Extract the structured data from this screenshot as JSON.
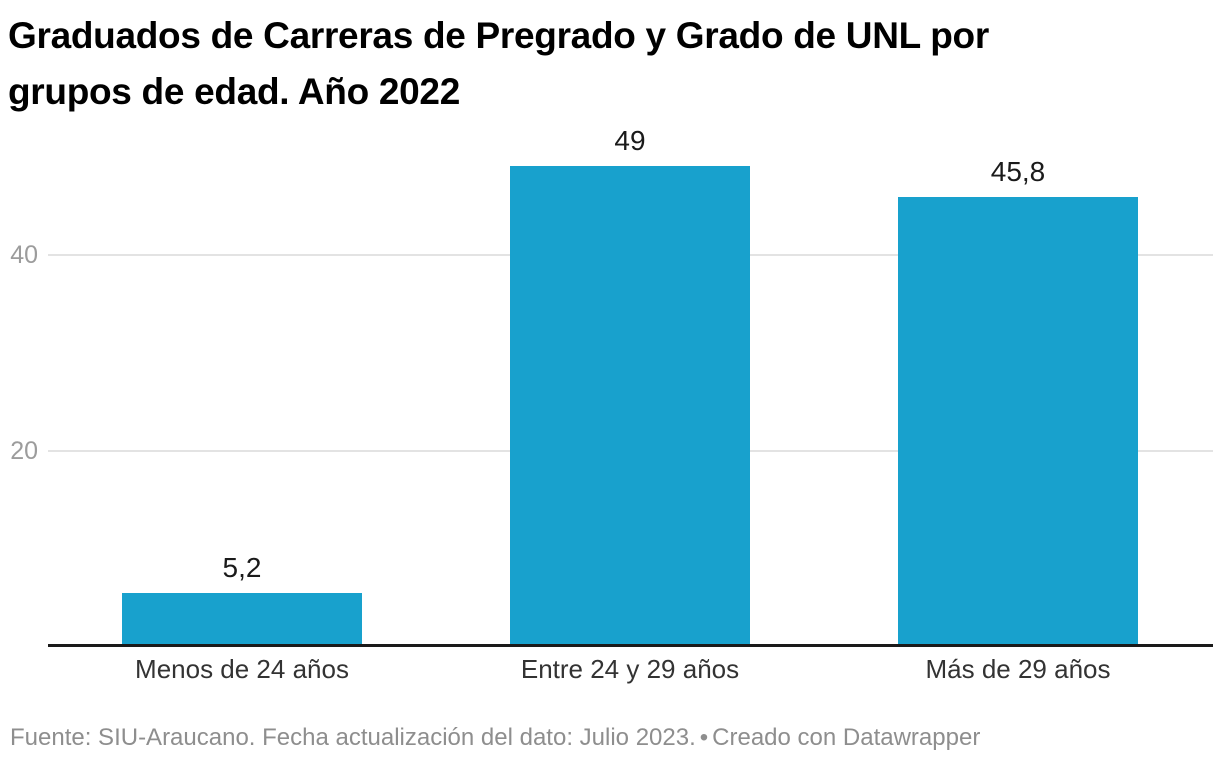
{
  "title": {
    "lines": [
      "Graduados de Carreras de Pregrado y Grado de UNL por",
      "grupos de edad. Año 2022"
    ]
  },
  "footer": {
    "source": "Fuente: SIU-Araucano. Fecha actualización del dato: Julio 2023.",
    "separator": "•",
    "credit": "Creado con Datawrapper"
  },
  "chart_data": {
    "type": "bar",
    "title": "Graduados de Carreras de Pregrado y Grado de UNL por grupos de edad. Año 2022",
    "categories": [
      "Menos de 24 años",
      "Entre 24 y 29 años",
      "Más de 29 años"
    ],
    "values": [
      5.2,
      49,
      45.8
    ],
    "value_labels": [
      "5,2",
      "49",
      "45,8"
    ],
    "xlabel": "",
    "ylabel": "",
    "ylim": [
      0,
      50.2
    ],
    "yticks": [
      20,
      40
    ],
    "grid": "horizontal",
    "legend": "none",
    "bar_color": "#18a1cd"
  },
  "colors": {
    "bar": "#18a1cd",
    "axis_line": "#1a1a1a",
    "gridline": "#e3e3e3",
    "tick_label": "#9c9c9c",
    "category_label": "#333333",
    "value_label": "#1a1a1a",
    "title_text": "#000000",
    "footer_text": "#8e8e8e",
    "background": "#ffffff"
  }
}
